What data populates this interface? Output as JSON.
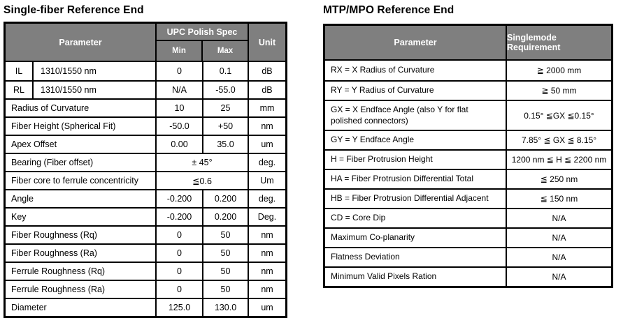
{
  "left_table": {
    "title": "Single-fiber Reference End",
    "header": {
      "parameter": "Parameter",
      "spec_group": "UPC Polish Spec",
      "min": "Min",
      "max": "Max",
      "unit": "Unit"
    },
    "rows": [
      {
        "code": "IL",
        "param": "1310/1550 nm",
        "min": "0",
        "max": "0.1",
        "unit": "dB"
      },
      {
        "code": "RL",
        "param": "1310/1550 nm",
        "min": "N/A",
        "max": "-55.0",
        "unit": "dB"
      },
      {
        "param": "Radius of Curvature",
        "min": "10",
        "max": "25",
        "unit": "mm"
      },
      {
        "param": "Fiber Height (Spherical Fit)",
        "min": "-50.0",
        "max": "+50",
        "unit": "nm"
      },
      {
        "param": "Apex Offset",
        "min": "0.00",
        "max": "35.0",
        "unit": "um"
      },
      {
        "param": "Bearing (Fiber offset)",
        "merged": "± 45°",
        "unit": "deg."
      },
      {
        "param": "Fiber core to ferrule concentricity",
        "merged": "≦0.6",
        "unit": "Um"
      },
      {
        "param": "Angle",
        "min": "-0.200",
        "max": "0.200",
        "unit": "deg."
      },
      {
        "param": "Key",
        "min": "-0.200",
        "max": "0.200",
        "unit": "Deg."
      },
      {
        "param": "Fiber Roughness (Rq)",
        "min": "0",
        "max": "50",
        "unit": "nm"
      },
      {
        "param": "Fiber Roughness (Ra)",
        "min": "0",
        "max": "50",
        "unit": "nm"
      },
      {
        "param": "Ferrule Roughness (Rq)",
        "min": "0",
        "max": "50",
        "unit": "nm"
      },
      {
        "param": "Ferrule Roughness (Ra)",
        "min": "0",
        "max": "50",
        "unit": "nm"
      },
      {
        "param": "Diameter",
        "min": "125.0",
        "max": "130.0",
        "unit": "um"
      }
    ]
  },
  "right_table": {
    "title": "MTP/MPO Reference End",
    "header": {
      "parameter": "Parameter",
      "requirement": "Singlemode Requirement"
    },
    "rows": [
      {
        "param": "RX = X Radius of Curvature",
        "req": "≧ 2000 mm"
      },
      {
        "param": "RY = Y Radius of Curvature",
        "req": "≧ 50 mm"
      },
      {
        "param": "GX = X Endface Angle (also Y for flat polished connectors)",
        "req": "0.15° ≦GX ≦0.15°"
      },
      {
        "param": "GY = Y Endface Angle",
        "req": "7.85° ≦ GX ≦ 8.15°"
      },
      {
        "param": "H = Fiber Protrusion Height",
        "req": "1200 nm ≦ H ≦ 2200 nm"
      },
      {
        "param": "HA = Fiber Protrusion Differential Total",
        "req": "≦ 250 nm"
      },
      {
        "param": "HB = Fiber Protrusion Differential Adjacent",
        "req": "≦ 150 nm"
      },
      {
        "param": "CD = Core Dip",
        "req": "N/A"
      },
      {
        "param": "Maximum Co-planarity",
        "req": "N/A"
      },
      {
        "param": "Flatness Deviation",
        "req": "N/A"
      },
      {
        "param": "Minimum Valid Pixels Ration",
        "req": "N/A"
      }
    ]
  },
  "colors": {
    "header_bg": "#7f7f7f",
    "header_text": "#ffffff",
    "border": "#000000",
    "body_text": "#000000"
  }
}
